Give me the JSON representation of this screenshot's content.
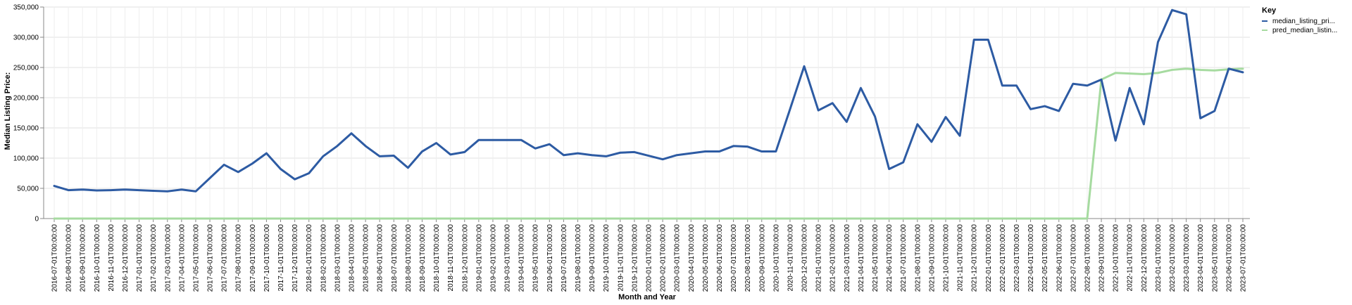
{
  "chart_data": {
    "type": "line",
    "xlabel": "Month and Year",
    "ylabel": "Median Listing Price:",
    "ylim": [
      0,
      350000
    ],
    "y_ticks": [
      "0",
      "50,000",
      "100,000",
      "150,000",
      "200,000",
      "250,000",
      "300,000",
      "350,000"
    ],
    "grid": true,
    "legend_title": "Key",
    "legend_position": "right",
    "x": [
      "2016-07-01T00:00:00",
      "2016-08-01T00:00:00",
      "2016-09-01T00:00:00",
      "2016-10-01T00:00:00",
      "2016-11-01T00:00:00",
      "2016-12-01T00:00:00",
      "2017-01-01T00:00:00",
      "2017-02-01T00:00:00",
      "2017-03-01T00:00:00",
      "2017-04-01T00:00:00",
      "2017-05-01T00:00:00",
      "2017-06-01T00:00:00",
      "2017-07-01T00:00:00",
      "2017-08-01T00:00:00",
      "2017-09-01T00:00:00",
      "2017-10-01T00:00:00",
      "2017-11-01T00:00:00",
      "2017-12-01T00:00:00",
      "2018-01-01T00:00:00",
      "2018-02-01T00:00:00",
      "2018-03-01T00:00:00",
      "2018-04-01T00:00:00",
      "2018-05-01T00:00:00",
      "2018-06-01T00:00:00",
      "2018-07-01T00:00:00",
      "2018-08-01T00:00:00",
      "2018-09-01T00:00:00",
      "2018-10-01T00:00:00",
      "2018-11-01T00:00:00",
      "2018-12-01T00:00:00",
      "2019-01-01T00:00:00",
      "2019-02-01T00:00:00",
      "2019-03-01T00:00:00",
      "2019-04-01T00:00:00",
      "2019-05-01T00:00:00",
      "2019-06-01T00:00:00",
      "2019-07-01T00:00:00",
      "2019-08-01T00:00:00",
      "2019-09-01T00:00:00",
      "2019-10-01T00:00:00",
      "2019-11-01T00:00:00",
      "2019-12-01T00:00:00",
      "2020-01-01T00:00:00",
      "2020-02-01T00:00:00",
      "2020-03-01T00:00:00",
      "2020-04-01T00:00:00",
      "2020-05-01T00:00:00",
      "2020-06-01T00:00:00",
      "2020-07-01T00:00:00",
      "2020-08-01T00:00:00",
      "2020-09-01T00:00:00",
      "2020-10-01T00:00:00",
      "2020-11-01T00:00:00",
      "2020-12-01T00:00:00",
      "2021-01-01T00:00:00",
      "2021-02-01T00:00:00",
      "2021-03-01T00:00:00",
      "2021-04-01T00:00:00",
      "2021-05-01T00:00:00",
      "2021-06-01T00:00:00",
      "2021-07-01T00:00:00",
      "2021-08-01T00:00:00",
      "2021-09-01T00:00:00",
      "2021-10-01T00:00:00",
      "2021-11-01T00:00:00",
      "2021-12-01T00:00:00",
      "2022-01-01T00:00:00",
      "2022-02-01T00:00:00",
      "2022-03-01T00:00:00",
      "2022-04-01T00:00:00",
      "2022-05-01T00:00:00",
      "2022-06-01T00:00:00",
      "2022-07-01T00:00:00",
      "2022-08-01T00:00:00",
      "2022-09-01T00:00:00",
      "2022-10-01T00:00:00",
      "2022-11-01T00:00:00",
      "2022-12-01T00:00:00",
      "2023-01-01T00:00:00",
      "2023-02-01T00:00:00",
      "2023-03-01T00:00:00",
      "2023-04-01T00:00:00",
      "2023-05-01T00:00:00",
      "2023-06-01T00:00:00",
      "2023-07-01T00:00:00"
    ],
    "series": [
      {
        "name": "median_listing_pri...",
        "color": "#2d5ba3",
        "values": [
          54000,
          47000,
          48000,
          46500,
          47000,
          48000,
          47000,
          46000,
          45000,
          48000,
          45000,
          67000,
          89000,
          77000,
          91000,
          108000,
          82000,
          65000,
          75000,
          103000,
          120000,
          141000,
          120000,
          103000,
          104000,
          84000,
          111000,
          125000,
          106000,
          110000,
          130000,
          130000,
          130000,
          130000,
          116000,
          123000,
          105000,
          108000,
          105000,
          103000,
          109000,
          110000,
          104000,
          98000,
          105000,
          108000,
          111000,
          111000,
          120000,
          119000,
          111000,
          111000,
          181000,
          252000,
          179000,
          191000,
          160000,
          216000,
          169000,
          82000,
          93000,
          156000,
          127000,
          168000,
          137000,
          296000,
          296000,
          220000,
          220000,
          181000,
          186000,
          178000,
          223000,
          220000,
          230000,
          129000,
          216000,
          156000,
          292000,
          345000,
          338000,
          166000,
          178000,
          248000,
          242000
        ]
      },
      {
        "name": "pred_median_listin...",
        "color": "#a6dba0",
        "values": [
          0,
          0,
          0,
          0,
          0,
          0,
          0,
          0,
          0,
          0,
          0,
          0,
          0,
          0,
          0,
          0,
          0,
          0,
          0,
          0,
          0,
          0,
          0,
          0,
          0,
          0,
          0,
          0,
          0,
          0,
          0,
          0,
          0,
          0,
          0,
          0,
          0,
          0,
          0,
          0,
          0,
          0,
          0,
          0,
          0,
          0,
          0,
          0,
          0,
          0,
          0,
          0,
          0,
          0,
          0,
          0,
          0,
          0,
          0,
          0,
          0,
          0,
          0,
          0,
          0,
          0,
          0,
          0,
          0,
          0,
          0,
          0,
          0,
          0,
          230000,
          241000,
          240000,
          239000,
          241000,
          246000,
          248000,
          246000,
          245000,
          247000,
          248000
        ]
      }
    ]
  }
}
